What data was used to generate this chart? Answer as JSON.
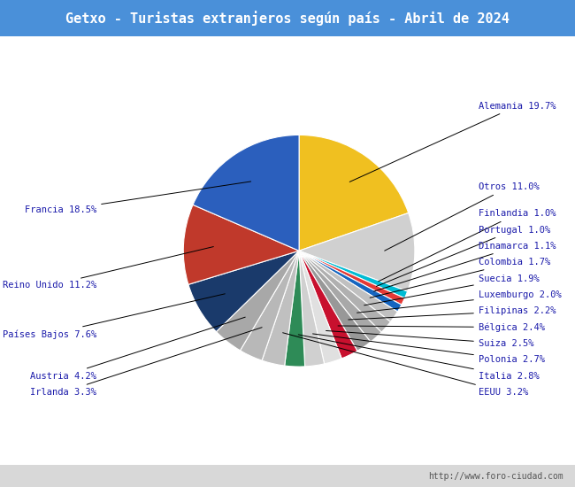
{
  "title": "Getxo - Turistas extranjeros según país - Abril de 2024",
  "title_bg_color": "#4a90d9",
  "title_text_color": "#ffffff",
  "footer_text": "http://www.foro-ciudad.com",
  "slices_ordered": [
    {
      "label": "Alemania",
      "value": 19.7,
      "color": "#f0c020"
    },
    {
      "label": "Otros",
      "value": 11.0,
      "color": "#d0d0d0"
    },
    {
      "label": "Finlandia",
      "value": 1.0,
      "color": "#00bcd4"
    },
    {
      "label": "Portugal",
      "value": 1.0,
      "color": "#e53935"
    },
    {
      "label": "Dinamarca",
      "value": 1.1,
      "color": "#1565c0"
    },
    {
      "label": "Colombia",
      "value": 1.7,
      "color": "#c0c0c0"
    },
    {
      "label": "Suecia",
      "value": 1.9,
      "color": "#b0b0b0"
    },
    {
      "label": "Luxemburgo",
      "value": 2.0,
      "color": "#a8a8a8"
    },
    {
      "label": "Filipinas",
      "value": 2.2,
      "color": "#989898"
    },
    {
      "label": "Bélgica",
      "value": 2.4,
      "color": "#c8102e"
    },
    {
      "label": "Suiza",
      "value": 2.5,
      "color": "#e0e0e0"
    },
    {
      "label": "Polonia",
      "value": 2.7,
      "color": "#d0d0d0"
    },
    {
      "label": "Italia",
      "value": 2.8,
      "color": "#2e8b57"
    },
    {
      "label": "EEUU",
      "value": 3.2,
      "color": "#c0c0c0"
    },
    {
      "label": "Irlanda",
      "value": 3.3,
      "color": "#b8b8b8"
    },
    {
      "label": "Austria",
      "value": 4.2,
      "color": "#a8a8a8"
    },
    {
      "label": "Países Bajos",
      "value": 7.6,
      "color": "#1a3a6b"
    },
    {
      "label": "Reino Unido",
      "value": 11.2,
      "color": "#c0392b"
    },
    {
      "label": "Francia",
      "value": 18.5,
      "color": "#2b5fbd"
    }
  ],
  "title_fontsize": 11,
  "label_fontsize": 7.5
}
